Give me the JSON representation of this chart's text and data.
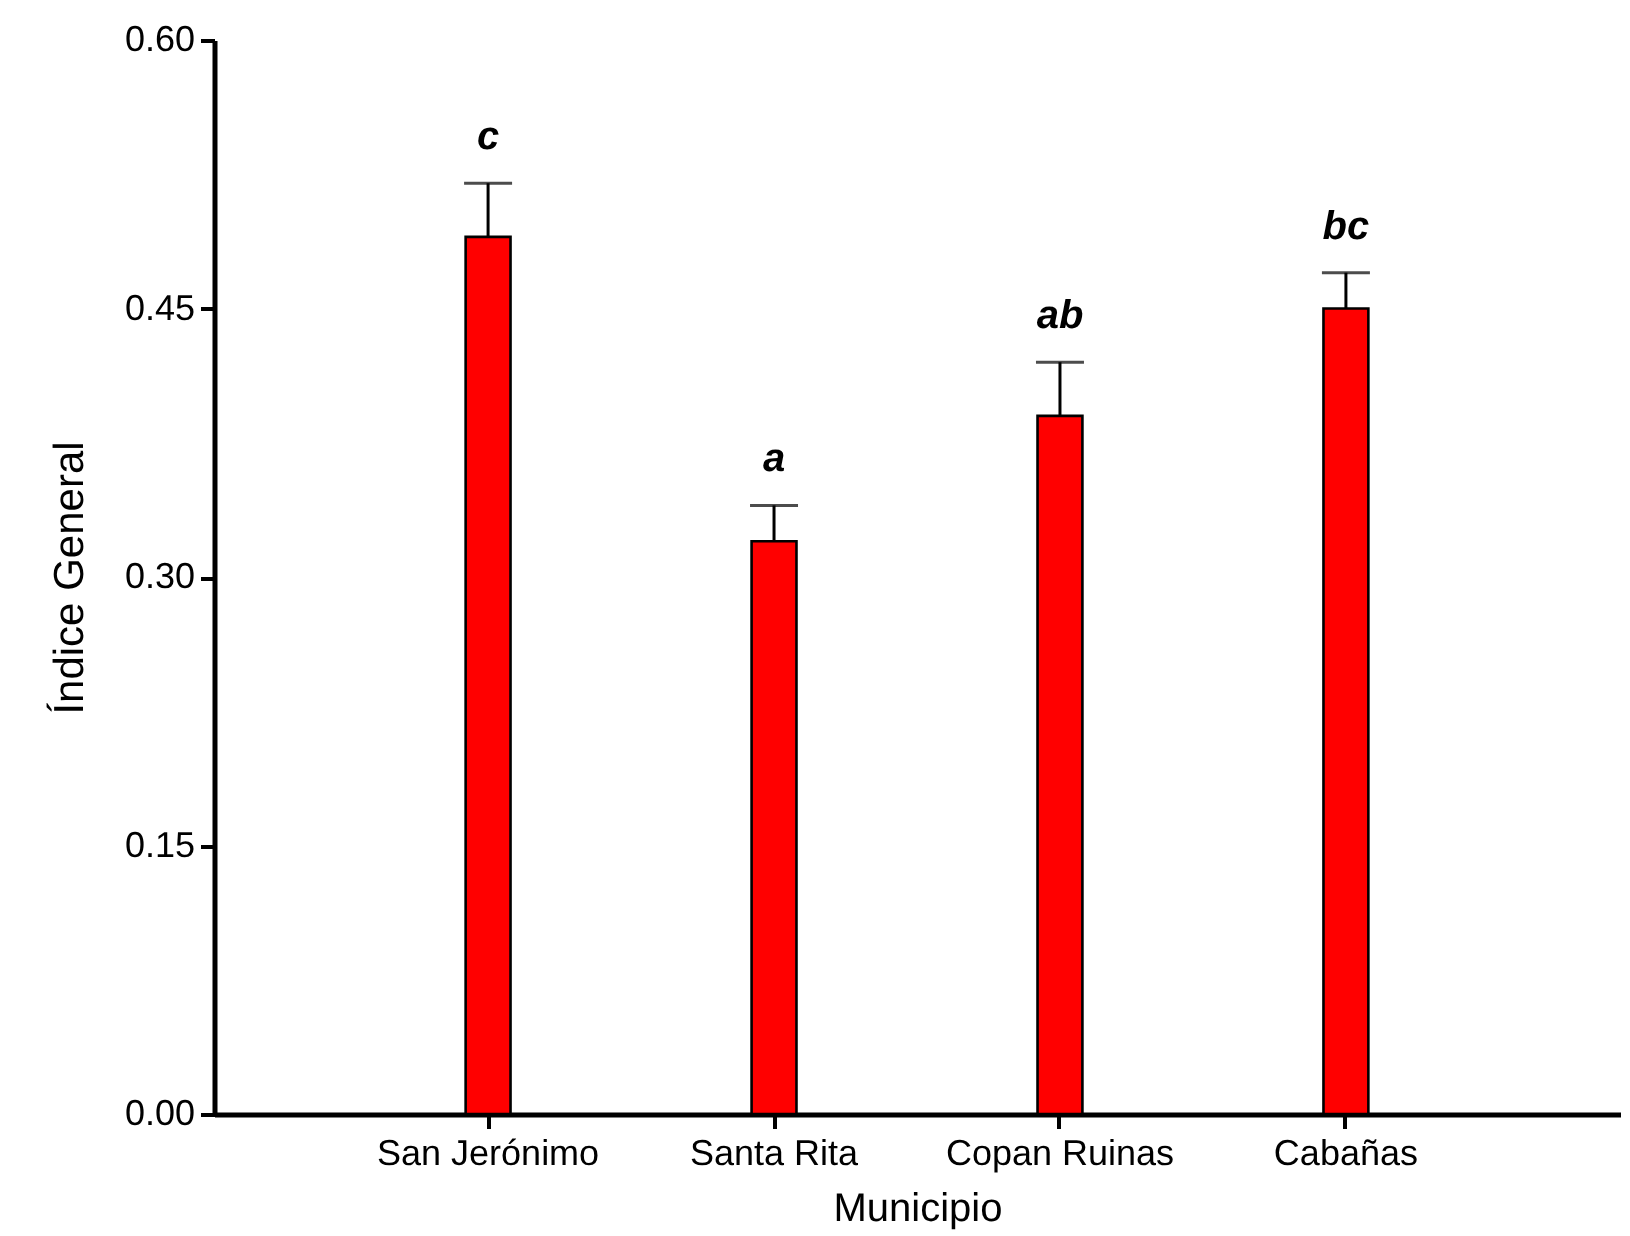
{
  "chart_data": {
    "type": "bar",
    "xlabel": "Municipio",
    "ylabel": "Índice General",
    "categories": [
      "San Jerónimo",
      "Santa Rita",
      "Copan Ruinas",
      "Cabañas"
    ],
    "values": [
      0.49,
      0.32,
      0.39,
      0.45
    ],
    "errors": [
      [
        0.49,
        0.52
      ],
      [
        0.32,
        0.34
      ],
      [
        0.39,
        0.42
      ],
      [
        0.45,
        0.47
      ]
    ],
    "color": "#ff0000",
    "ylim": [
      0,
      0.6
    ],
    "yticks": [
      {
        "value": 0,
        "label": "0.00"
      },
      {
        "value": 0.15,
        "label": "0.15"
      },
      {
        "value": 0.3,
        "label": "0.30"
      },
      {
        "value": 0.45,
        "label": "0.45"
      },
      {
        "value": 0.6,
        "label": "0.60"
      }
    ],
    "annotations": [
      {
        "text": "c",
        "x": "San Jerónimo",
        "y": 0.52
      },
      {
        "text": "a",
        "x": "Santa Rita",
        "y": 0.34
      },
      {
        "text": "ab",
        "x": "Copan Ruinas",
        "y": 0.42
      },
      {
        "text": "bc",
        "x": "Cabañas",
        "y": 0.47
      }
    ]
  }
}
